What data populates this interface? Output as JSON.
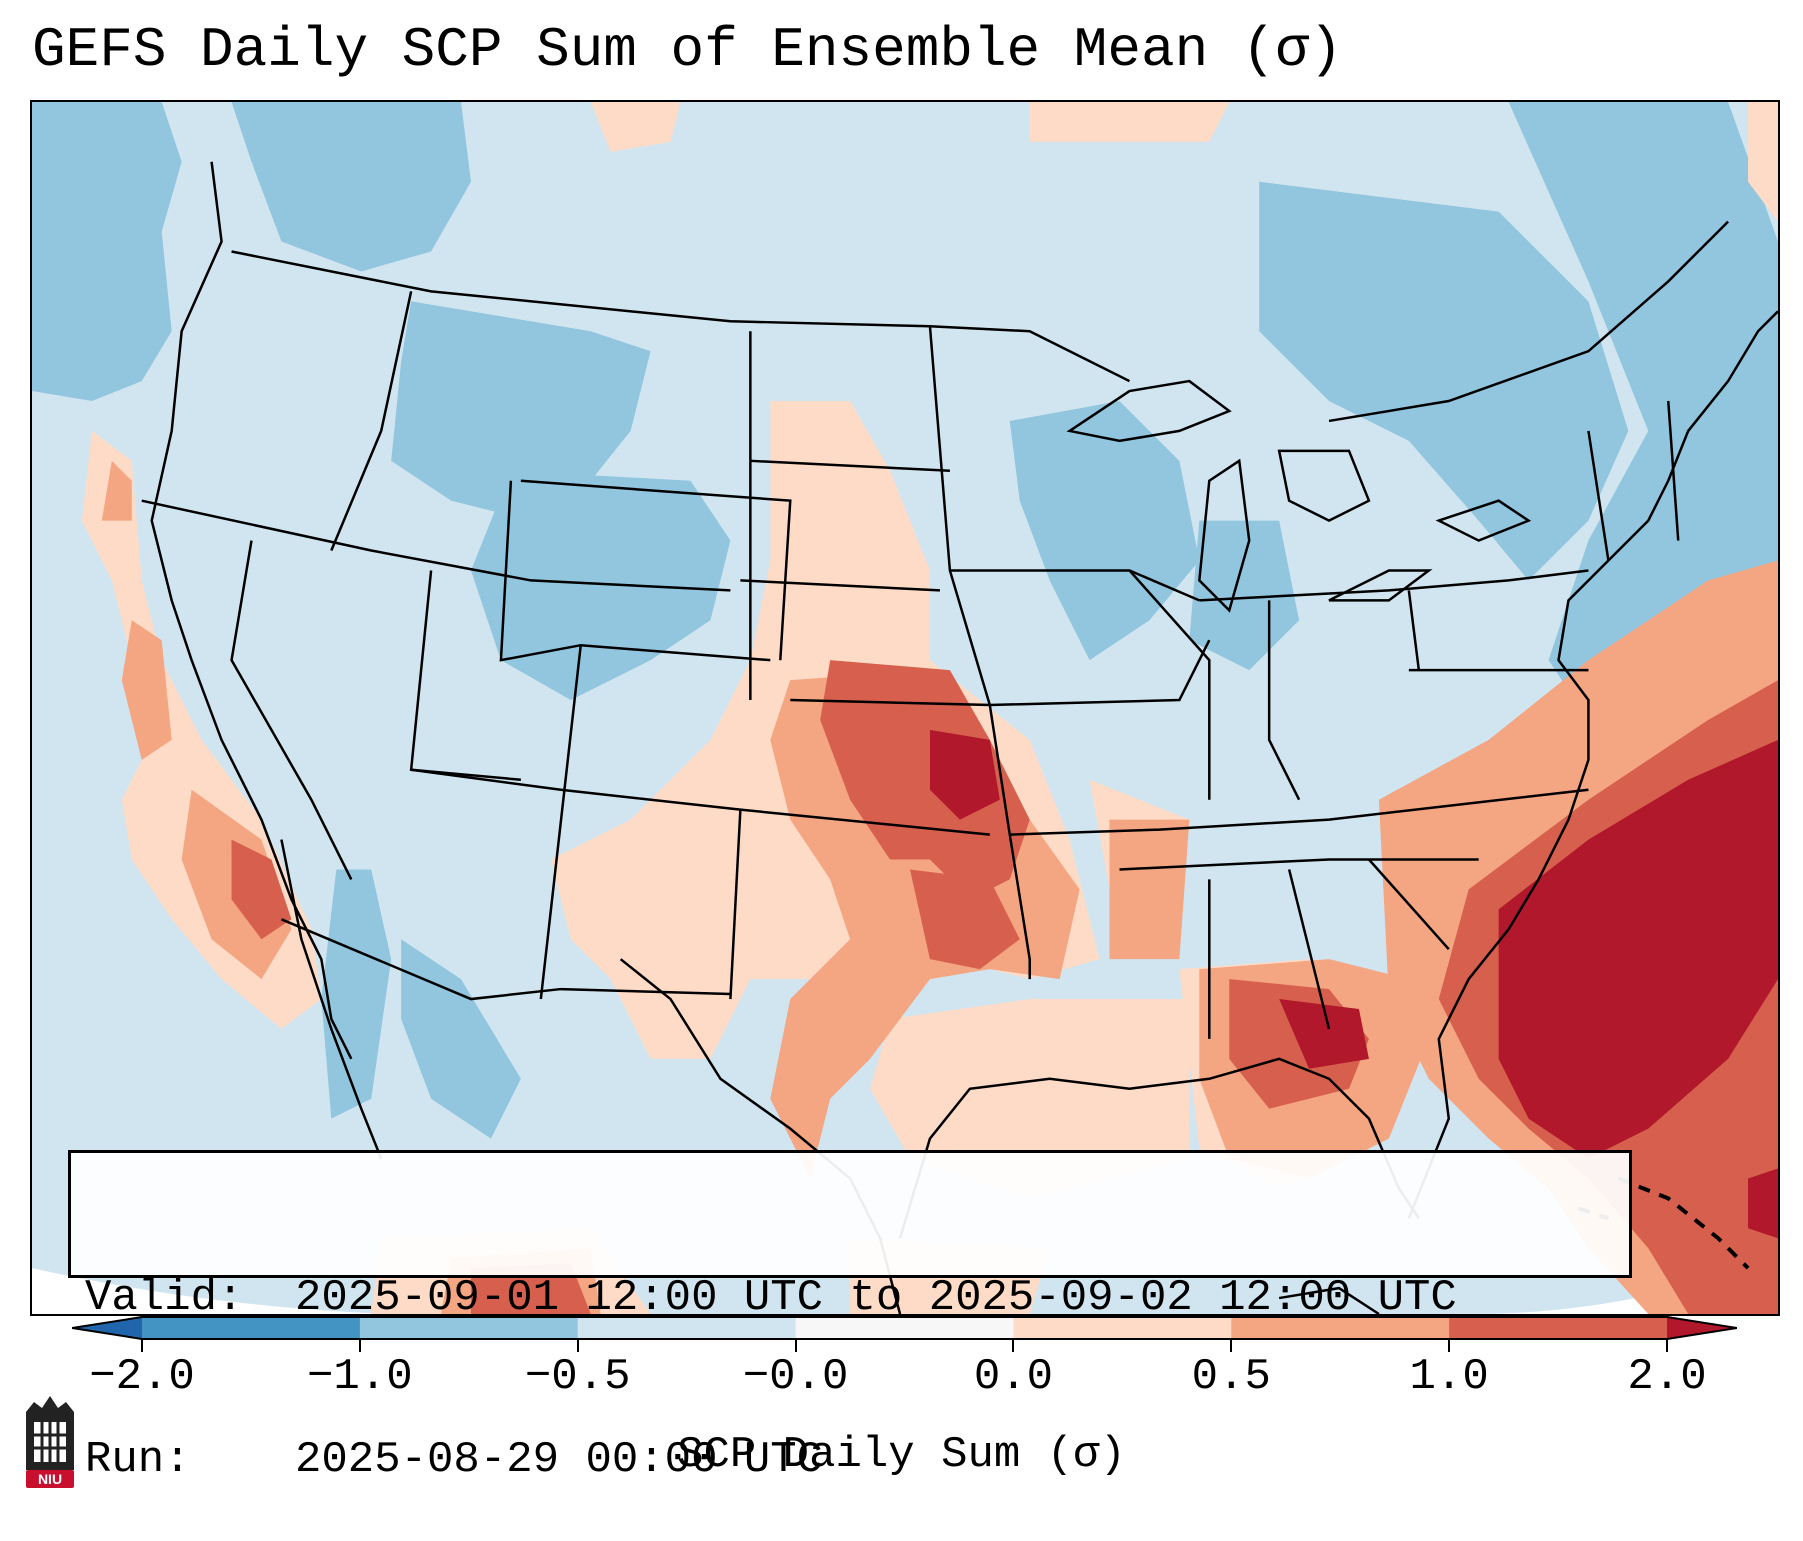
{
  "title": "GEFS Daily SCP Sum of Ensemble Mean (σ)",
  "info": {
    "valid_label": "Valid:",
    "valid_value": "2025-09-01 12:00 UTC to 2025-09-02 12:00 UTC",
    "run_label": "Run:",
    "run_value": "2025-08-29 00:00 UTC"
  },
  "colorbar": {
    "label": "SCP Daily Sum (σ)",
    "ticks": [
      "−2.0",
      "−1.0",
      "−0.5",
      "−0.0",
      "0.0",
      "0.5",
      "1.0",
      "2.0"
    ],
    "colors": [
      "#4393c3",
      "#92c5de",
      "#d1e5f0",
      "#f7f7f7",
      "#fddbc7",
      "#f4a582",
      "#d6604d"
    ],
    "extend_low": "#2166ac",
    "extend_high": "#b2182b"
  },
  "map": {
    "background": "#d1e5f0",
    "outside_domain": "#ffffff",
    "regions": "Contiguous United States, southern Canada, northern Mexico, Gulf of Mexico, western Atlantic",
    "highlights": [
      "Strong positive anomaly (>2σ) over the western Atlantic off the Southeast US coast",
      "Positive anomaly (1–2σ) over Oklahoma and north Texas",
      "Positive anomaly over the northeastern Gulf of Mexico",
      "Positive anomaly along the California and Baja coast"
    ]
  },
  "logo": {
    "text": "NIU",
    "color": "#c8102e"
  }
}
